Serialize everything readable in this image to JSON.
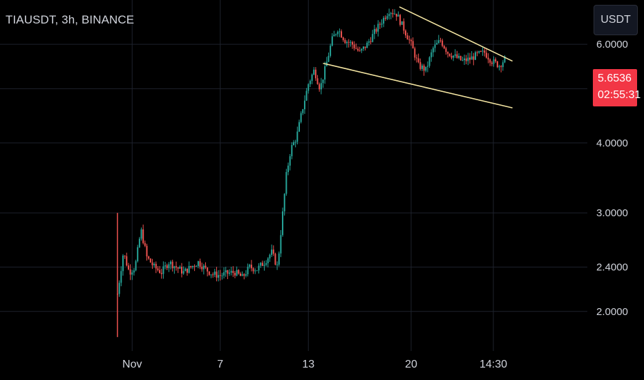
{
  "header": {
    "title": "TIAUSDT, 3h, BINANCE"
  },
  "toolbar": {
    "currency_label": "USDT"
  },
  "price_tag": {
    "price": "5.6536",
    "countdown": "02:55:31"
  },
  "colors": {
    "up": "#26a69a",
    "down": "#ef5350",
    "trendline": "#f5e6a3",
    "grid": "#1e222d",
    "price_tag": "#f23645"
  },
  "chart_data": {
    "type": "candlestick",
    "symbol": "TIAUSDT",
    "interval": "3h",
    "exchange": "BINANCE",
    "y_scale": "log",
    "ylim": [
      1.7,
      7.2
    ],
    "y_ticks": [
      2.0,
      2.4,
      3.0,
      4.0,
      5.0,
      6.0
    ],
    "y_tick_labels": [
      "2.0000",
      "2.4000",
      "3.0000",
      "4.0000",
      "5.0000",
      "6.0000"
    ],
    "x_ticks": [
      {
        "label": "Nov",
        "day": 1
      },
      {
        "label": "7",
        "day": 7
      },
      {
        "label": "13",
        "day": 13
      },
      {
        "label": "20",
        "day": 20
      },
      {
        "label": "14:30",
        "day": 25.6
      }
    ],
    "xlim": [
      -8,
      32
    ],
    "last_price": 5.6536,
    "series_by_day": [
      {
        "day": 0.0,
        "price": 2.15
      },
      {
        "day": 0.4,
        "price": 2.55
      },
      {
        "day": 0.8,
        "price": 2.35
      },
      {
        "day": 1.2,
        "price": 2.4
      },
      {
        "day": 1.6,
        "price": 2.8
      },
      {
        "day": 2.0,
        "price": 2.5
      },
      {
        "day": 2.5,
        "price": 2.4
      },
      {
        "day": 3.0,
        "price": 2.35
      },
      {
        "day": 3.5,
        "price": 2.45
      },
      {
        "day": 4.0,
        "price": 2.4
      },
      {
        "day": 4.5,
        "price": 2.35
      },
      {
        "day": 5.0,
        "price": 2.4
      },
      {
        "day": 5.5,
        "price": 2.45
      },
      {
        "day": 6.0,
        "price": 2.38
      },
      {
        "day": 6.5,
        "price": 2.33
      },
      {
        "day": 7.0,
        "price": 2.32
      },
      {
        "day": 7.5,
        "price": 2.34
      },
      {
        "day": 8.0,
        "price": 2.35
      },
      {
        "day": 8.5,
        "price": 2.3
      },
      {
        "day": 9.0,
        "price": 2.4
      },
      {
        "day": 9.5,
        "price": 2.38
      },
      {
        "day": 10.0,
        "price": 2.45
      },
      {
        "day": 10.5,
        "price": 2.55
      },
      {
        "day": 10.9,
        "price": 2.4
      },
      {
        "day": 11.2,
        "price": 2.9
      },
      {
        "day": 11.5,
        "price": 3.5
      },
      {
        "day": 11.8,
        "price": 3.9
      },
      {
        "day": 12.2,
        "price": 4.1
      },
      {
        "day": 12.6,
        "price": 4.6
      },
      {
        "day": 13.0,
        "price": 5.1
      },
      {
        "day": 13.4,
        "price": 5.4
      },
      {
        "day": 13.8,
        "price": 5.0
      },
      {
        "day": 14.2,
        "price": 5.5
      },
      {
        "day": 14.6,
        "price": 6.1
      },
      {
        "day": 15.0,
        "price": 6.4
      },
      {
        "day": 15.5,
        "price": 6.1
      },
      {
        "day": 16.0,
        "price": 6.0
      },
      {
        "day": 16.5,
        "price": 5.8
      },
      {
        "day": 17.0,
        "price": 6.0
      },
      {
        "day": 17.5,
        "price": 6.3
      },
      {
        "day": 18.0,
        "price": 6.6
      },
      {
        "day": 18.5,
        "price": 6.9
      },
      {
        "day": 19.0,
        "price": 6.8
      },
      {
        "day": 19.5,
        "price": 6.4
      },
      {
        "day": 20.0,
        "price": 6.0
      },
      {
        "day": 20.5,
        "price": 5.5
      },
      {
        "day": 21.0,
        "price": 5.4
      },
      {
        "day": 21.5,
        "price": 5.9
      },
      {
        "day": 22.0,
        "price": 6.1
      },
      {
        "day": 22.5,
        "price": 5.8
      },
      {
        "day": 23.0,
        "price": 5.7
      },
      {
        "day": 23.5,
        "price": 5.6
      },
      {
        "day": 24.0,
        "price": 5.65
      },
      {
        "day": 24.5,
        "price": 5.75
      },
      {
        "day": 25.0,
        "price": 5.8
      },
      {
        "day": 25.5,
        "price": 5.6
      },
      {
        "day": 26.0,
        "price": 5.5
      },
      {
        "day": 26.4,
        "price": 5.6536
      }
    ],
    "trendlines": [
      {
        "name": "upper",
        "from": {
          "day": 19.2,
          "price": 7.0
        },
        "to": {
          "day": 26.9,
          "price": 5.6
        }
      },
      {
        "name": "lower",
        "from": {
          "day": 14.0,
          "price": 5.55
        },
        "to": {
          "day": 26.9,
          "price": 4.62
        }
      }
    ]
  }
}
